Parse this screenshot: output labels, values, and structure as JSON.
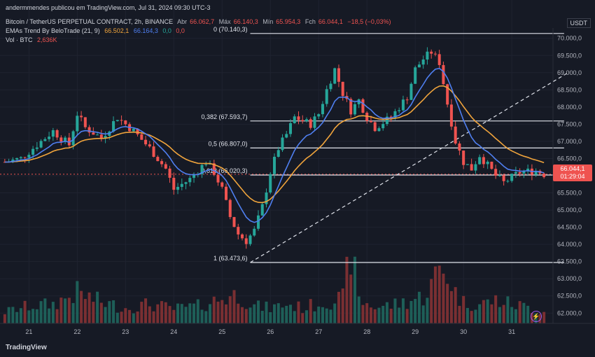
{
  "publisher": "andermmendes publicou em TradingView.com, Jul 31, 2024 09:30 UTC-3",
  "header": {
    "symbol": "Bitcoin / TetherUS PERPETUAL CONTRACT, 2h, BINANCE",
    "open_label": "Abr",
    "open_value": "66.062,7",
    "high_label": "Máx",
    "high_value": "66.140,3",
    "low_label": "Mín",
    "low_value": "65.954,3",
    "close_label": "Fch",
    "close_value": "66.044,1",
    "change": "−18,5 (−0,03%)",
    "ema_label": "EMAs Trend By BeloTrade (21, 9)",
    "ema_values": [
      "66.502,1",
      "66.164,3",
      "0,0",
      "0,0"
    ],
    "vol_label": "Vol · BTC",
    "vol_value": "2,636K"
  },
  "currency": "USDT",
  "price_badge": {
    "price": "66.044,1",
    "countdown": "01:29:04"
  },
  "footer_logo": "TradingView",
  "colors": {
    "up": "#26a69a",
    "down": "#ef5350",
    "ema_fast": "#4f7ff0",
    "ema_slow": "#f0a43c",
    "background": "#161a25"
  },
  "chart_data": {
    "type": "candlestick",
    "y_ticks": [
      62000,
      62500,
      63000,
      63500,
      64000,
      64500,
      65000,
      65500,
      66000,
      66500,
      67000,
      67500,
      68000,
      68500,
      69000,
      69500,
      70000
    ],
    "y_tick_labels": [
      "62.000,0",
      "62.500,0",
      "63.000,0",
      "63.500,0",
      "64.000,0",
      "64.500,0",
      "65.000,0",
      "65.500,0",
      "66.000,0",
      "66.500,0",
      "67.000,0",
      "67.500,0",
      "68.000,0",
      "68.500,0",
      "69.000,0",
      "69.500,0",
      "70.000,0"
    ],
    "ylim": [
      61700,
      70300
    ],
    "x_labels": [
      "21",
      "22",
      "23",
      "24",
      "25",
      "26",
      "27",
      "28",
      "29",
      "30",
      "31"
    ],
    "x_label_index": [
      6,
      18,
      30,
      42,
      54,
      66,
      78,
      90,
      102,
      114,
      126
    ],
    "fib_levels": [
      {
        "label": "0 (70.140,3)",
        "price": 70140.3
      },
      {
        "label": "0,382 (67.593,7)",
        "price": 67593.7
      },
      {
        "label": "0,5 (66.807,0)",
        "price": 66807.0
      },
      {
        "label": "0,618 (66.020,3)",
        "price": 66020.3
      },
      {
        "label": "1 (63.473,6)",
        "price": 63473.6
      }
    ],
    "trendline": {
      "from": {
        "index": 61,
        "price": 63473.6
      },
      "to": {
        "index": 140,
        "price": 69000
      }
    },
    "close_path": [
      [
        0,
        66400
      ],
      [
        4,
        66500
      ],
      [
        8,
        66900
      ],
      [
        12,
        67300
      ],
      [
        16,
        66900
      ],
      [
        18,
        67800
      ],
      [
        20,
        67400
      ],
      [
        24,
        67100
      ],
      [
        28,
        67700
      ],
      [
        32,
        67300
      ],
      [
        36,
        66800
      ],
      [
        40,
        66200
      ],
      [
        42,
        65600
      ],
      [
        46,
        65900
      ],
      [
        50,
        66400
      ],
      [
        52,
        66100
      ],
      [
        54,
        65600
      ],
      [
        56,
        64800
      ],
      [
        58,
        64300
      ],
      [
        60,
        64100
      ],
      [
        62,
        64400
      ],
      [
        64,
        65100
      ],
      [
        66,
        66100
      ],
      [
        68,
        66800
      ],
      [
        70,
        67200
      ],
      [
        72,
        67700
      ],
      [
        76,
        67500
      ],
      [
        78,
        67800
      ],
      [
        80,
        68500
      ],
      [
        82,
        69100
      ],
      [
        84,
        68400
      ],
      [
        86,
        67900
      ],
      [
        88,
        68200
      ],
      [
        90,
        67700
      ],
      [
        92,
        67400
      ],
      [
        96,
        67700
      ],
      [
        100,
        68300
      ],
      [
        102,
        69100
      ],
      [
        104,
        69400
      ],
      [
        106,
        69600
      ],
      [
        108,
        69300
      ],
      [
        110,
        68100
      ],
      [
        112,
        67000
      ],
      [
        114,
        66400
      ],
      [
        116,
        66200
      ],
      [
        118,
        66600
      ],
      [
        120,
        66300
      ],
      [
        122,
        66000
      ],
      [
        124,
        65800
      ],
      [
        128,
        66100
      ],
      [
        132,
        66150
      ],
      [
        134,
        66044
      ]
    ],
    "volume_path": [
      [
        0,
        120
      ],
      [
        6,
        180
      ],
      [
        12,
        200
      ],
      [
        18,
        320
      ],
      [
        24,
        220
      ],
      [
        30,
        160
      ],
      [
        36,
        200
      ],
      [
        42,
        150
      ],
      [
        48,
        180
      ],
      [
        54,
        260
      ],
      [
        58,
        300
      ],
      [
        62,
        180
      ],
      [
        66,
        160
      ],
      [
        70,
        200
      ],
      [
        74,
        160
      ],
      [
        80,
        230
      ],
      [
        84,
        260
      ],
      [
        86,
        780
      ],
      [
        88,
        240
      ],
      [
        92,
        170
      ],
      [
        96,
        190
      ],
      [
        100,
        230
      ],
      [
        104,
        280
      ],
      [
        106,
        400
      ],
      [
        108,
        560
      ],
      [
        110,
        520
      ],
      [
        112,
        320
      ],
      [
        114,
        220
      ],
      [
        118,
        200
      ],
      [
        122,
        240
      ],
      [
        126,
        200
      ],
      [
        130,
        170
      ],
      [
        134,
        120
      ]
    ],
    "volume_max": 800
  }
}
